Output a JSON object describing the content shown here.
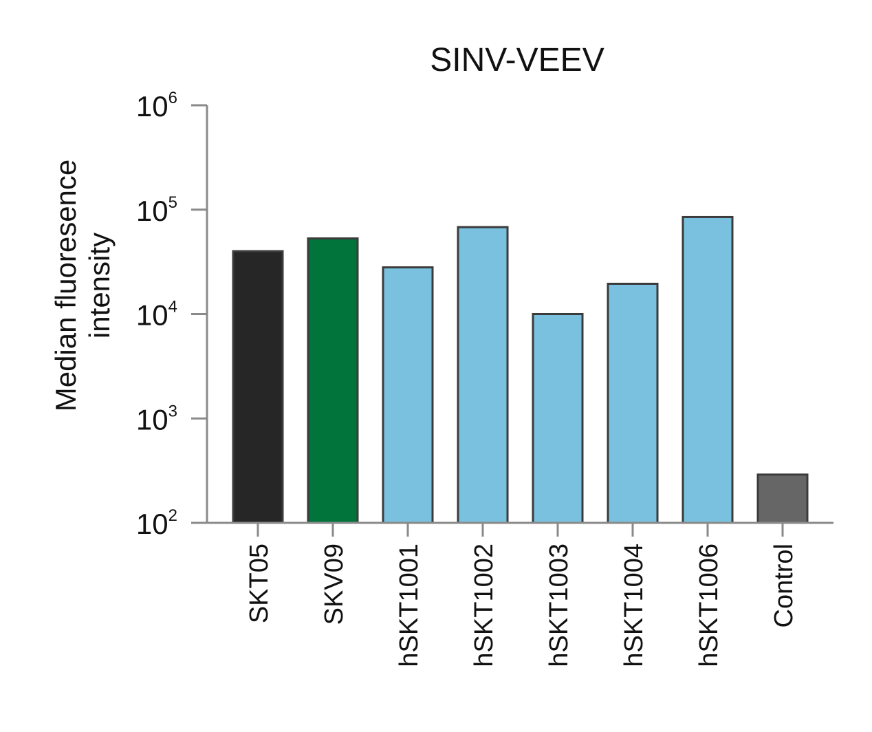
{
  "chart_data": {
    "type": "bar",
    "title": "SINV-VEEV",
    "xlabel": "",
    "ylabel": [
      "Median fluoresence",
      "intensity"
    ],
    "yscale": "log",
    "ylim": [
      100,
      1000000
    ],
    "yticks": [
      {
        "base": "10",
        "exp": "2"
      },
      {
        "base": "10",
        "exp": "3"
      },
      {
        "base": "10",
        "exp": "4"
      },
      {
        "base": "10",
        "exp": "5"
      },
      {
        "base": "10",
        "exp": "6"
      }
    ],
    "categories": [
      "SKT05",
      "SKV09",
      "hSKT1001",
      "hSKT1002",
      "hSKT1003",
      "hSKT1004",
      "hSKT1006",
      "Control"
    ],
    "values": [
      40000,
      53000,
      28000,
      68000,
      10000,
      19500,
      85000,
      290
    ],
    "colors": [
      "#262626",
      "#00743a",
      "#79c1de",
      "#79c1de",
      "#79c1de",
      "#79c1de",
      "#79c1de",
      "#666666"
    ],
    "grid": false,
    "legend": "none"
  }
}
